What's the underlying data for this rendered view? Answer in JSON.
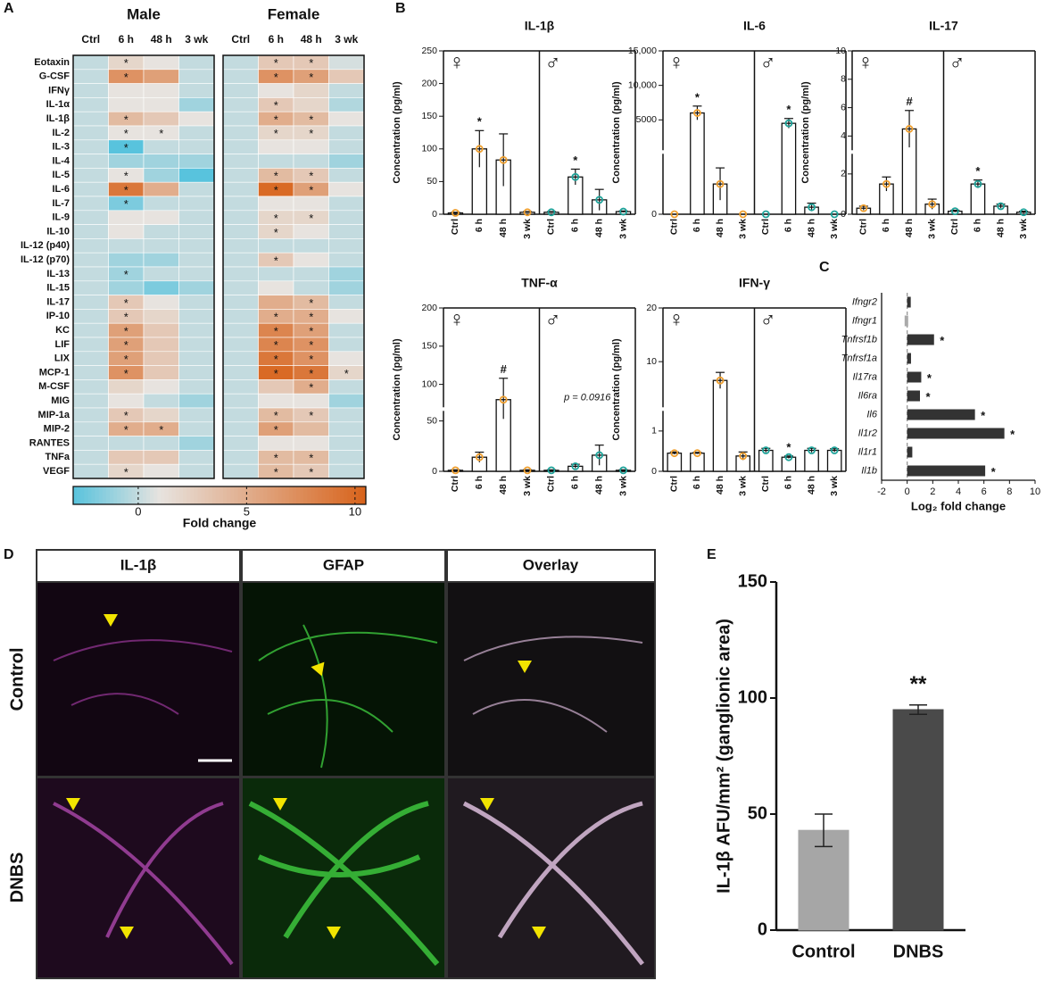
{
  "chart_data": [
    {
      "type": "heatmap",
      "panel": "A",
      "groups": [
        {
          "name": "Male",
          "columns": [
            "Ctrl",
            "6 h",
            "48 h",
            "3 wk"
          ]
        },
        {
          "name": "Female",
          "columns": [
            "Ctrl",
            "6 h",
            "48 h",
            "3 wk"
          ]
        }
      ],
      "rows": [
        "Eotaxin",
        "G-CSF",
        "IFNγ",
        "IL-1α",
        "IL-1β",
        "IL-2",
        "IL-3",
        "IL-4",
        "IL-5",
        "IL-6",
        "IL-7",
        "IL-9",
        "IL-10",
        "IL-12 (p40)",
        "IL-12 (p70)",
        "IL-13",
        "IL-15",
        "IL-17",
        "IP-10",
        "KC",
        "LIF",
        "LIX",
        "MCP-1",
        "M-CSF",
        "MIG",
        "MIP-1a",
        "MIP-2",
        "RANTES",
        "TNFa",
        "VEGF"
      ],
      "values": [
        [
          0,
          2,
          1,
          0,
          0,
          3,
          3,
          0.5
        ],
        [
          0,
          7,
          6,
          0,
          0,
          7,
          6,
          3
        ],
        [
          0,
          1,
          1,
          0,
          0,
          1,
          2,
          0
        ],
        [
          0,
          1,
          1,
          -1,
          0,
          3,
          2,
          -0.5
        ],
        [
          0,
          4,
          3,
          1,
          0,
          5,
          4,
          1
        ],
        [
          0,
          1,
          1,
          0,
          0,
          2,
          2,
          0
        ],
        [
          0,
          -3,
          0,
          0,
          0,
          1,
          1,
          0
        ],
        [
          0,
          -1,
          -1,
          -1,
          0,
          0,
          0,
          -1
        ],
        [
          0,
          1,
          -1,
          -3,
          0,
          4,
          3,
          0
        ],
        [
          0,
          9,
          5,
          0,
          0,
          10,
          6,
          1
        ],
        [
          0,
          -2,
          0,
          0,
          0,
          1,
          1,
          0
        ],
        [
          0,
          1,
          1,
          0,
          0,
          2,
          2,
          0
        ],
        [
          0,
          1,
          0,
          0,
          0,
          2,
          1,
          0
        ],
        [
          0,
          0,
          0,
          0,
          0,
          0,
          0,
          0
        ],
        [
          0,
          -1,
          -1,
          0,
          0,
          3,
          1,
          0
        ],
        [
          0,
          -1,
          0,
          0,
          0,
          0,
          0,
          -1
        ],
        [
          0,
          -1,
          -2,
          -1,
          0,
          1,
          0,
          -1
        ],
        [
          0,
          3,
          1,
          0,
          0,
          5,
          4,
          0
        ],
        [
          0,
          3,
          2,
          0,
          0,
          5,
          5,
          1
        ],
        [
          0,
          6,
          3,
          0,
          0,
          8,
          6,
          0
        ],
        [
          0,
          6,
          3,
          0,
          0,
          8,
          7,
          0
        ],
        [
          0,
          6,
          3,
          0,
          0,
          9,
          7,
          1
        ],
        [
          0,
          7,
          3,
          0,
          0,
          10,
          9,
          2
        ],
        [
          0,
          2,
          1,
          0,
          0,
          3,
          5,
          0
        ],
        [
          0,
          1,
          0,
          -1,
          0,
          1,
          1,
          -1
        ],
        [
          0,
          3,
          2,
          0,
          0,
          4,
          3,
          0
        ],
        [
          0,
          5,
          5,
          0,
          0,
          6,
          4,
          0
        ],
        [
          0,
          0,
          0,
          -1,
          0,
          1,
          1,
          0
        ],
        [
          0,
          3,
          3,
          0,
          0,
          4,
          4,
          0
        ],
        [
          0,
          2,
          1,
          0,
          0,
          4,
          3,
          0
        ]
      ],
      "star": "*",
      "star_cells": [
        [
          0,
          1
        ],
        [
          0,
          5
        ],
        [
          0,
          6
        ],
        [
          1,
          1
        ],
        [
          1,
          5
        ],
        [
          1,
          6
        ],
        [
          3,
          5
        ],
        [
          4,
          1
        ],
        [
          4,
          5
        ],
        [
          4,
          6
        ],
        [
          5,
          1
        ],
        [
          5,
          2
        ],
        [
          5,
          5
        ],
        [
          5,
          6
        ],
        [
          6,
          1
        ],
        [
          8,
          1
        ],
        [
          8,
          5
        ],
        [
          8,
          6
        ],
        [
          9,
          1
        ],
        [
          9,
          5
        ],
        [
          9,
          6
        ],
        [
          10,
          1
        ],
        [
          11,
          5
        ],
        [
          11,
          6
        ],
        [
          12,
          5
        ],
        [
          14,
          5
        ],
        [
          15,
          1
        ],
        [
          17,
          1
        ],
        [
          17,
          6
        ],
        [
          18,
          1
        ],
        [
          18,
          5
        ],
        [
          18,
          6
        ],
        [
          19,
          1
        ],
        [
          19,
          5
        ],
        [
          19,
          6
        ],
        [
          20,
          1
        ],
        [
          20,
          5
        ],
        [
          20,
          6
        ],
        [
          21,
          1
        ],
        [
          21,
          5
        ],
        [
          21,
          6
        ],
        [
          22,
          1
        ],
        [
          22,
          5
        ],
        [
          22,
          6
        ],
        [
          22,
          7
        ],
        [
          23,
          6
        ],
        [
          25,
          1
        ],
        [
          25,
          5
        ],
        [
          25,
          6
        ],
        [
          26,
          1
        ],
        [
          26,
          2
        ],
        [
          26,
          5
        ],
        [
          28,
          5
        ],
        [
          28,
          6
        ],
        [
          29,
          1
        ],
        [
          29,
          5
        ],
        [
          29,
          6
        ]
      ],
      "zlim": [
        -3,
        10.5
      ],
      "zticks": [
        0,
        5,
        10
      ],
      "colorbar_label": "Fold change",
      "colorscale": [
        [
          -3,
          "#58c3dd"
        ],
        [
          1,
          "#e7e3df"
        ],
        [
          10.5,
          "#d8631b"
        ]
      ]
    },
    {
      "type": "bar",
      "panel": "B",
      "title": "IL-1β",
      "ylabel": "Concentration (pg/ml)",
      "ylim": [
        0,
        250
      ],
      "yticks": [
        0,
        50,
        100,
        150,
        200,
        250
      ],
      "groups": [
        {
          "name": "♀",
          "color": "#f0a030",
          "categories": [
            "Ctrl",
            "6 h",
            "48 h",
            "3 wk"
          ],
          "values": [
            2,
            100,
            83,
            3
          ],
          "errors": [
            1,
            28,
            40,
            1
          ],
          "sig": [
            null,
            "*",
            null,
            null
          ]
        },
        {
          "name": "♂",
          "color": "#1fa39a",
          "categories": [
            "Ctrl",
            "6 h",
            "48 h",
            "3 wk"
          ],
          "values": [
            3,
            57,
            22,
            4
          ],
          "errors": [
            1,
            12,
            16,
            1
          ],
          "sig": [
            null,
            "*",
            null,
            null
          ]
        }
      ]
    },
    {
      "type": "bar",
      "title": "IL-6",
      "ylabel": "Concentration (pg/ml)",
      "ylim": [
        0,
        15000
      ],
      "ybreak": [
        600,
        600
      ],
      "yticks": [
        0,
        5000,
        {
          "value": 10000,
          "label": "10,000"
        },
        {
          "value": 15000,
          "label": "15,000"
        }
      ],
      "groups": [
        {
          "name": "♀",
          "color": "#f0a030",
          "categories": [
            "Ctrl",
            "6 h",
            "48 h",
            "3 wk"
          ],
          "values": [
            0,
            6000,
            300,
            0
          ],
          "errors": [
            0,
            1000,
            160,
            0
          ],
          "sig": [
            null,
            "*",
            null,
            null
          ]
        },
        {
          "name": "♂",
          "color": "#1fa39a",
          "categories": [
            "Ctrl",
            "6 h",
            "48 h",
            "3 wk"
          ],
          "values": [
            0,
            4500,
            70,
            0
          ],
          "errors": [
            0,
            700,
            40,
            0
          ],
          "sig": [
            null,
            "*",
            null,
            null
          ]
        }
      ]
    },
    {
      "type": "bar",
      "title": "IL-17",
      "ylabel": "Concentration (pg/ml)",
      "ylim": [
        0,
        10
      ],
      "ybreak": [
        3,
        3
      ],
      "yticks": [
        0,
        2,
        4,
        6,
        8,
        10
      ],
      "groups": [
        {
          "name": "♀",
          "color": "#f0a030",
          "categories": [
            "Ctrl",
            "6 h",
            "48 h",
            "3 wk"
          ],
          "values": [
            0.3,
            1.5,
            4.5,
            0.5
          ],
          "errors": [
            0.1,
            0.35,
            1.3,
            0.25
          ],
          "sig": [
            null,
            null,
            "#",
            null
          ]
        },
        {
          "name": "♂",
          "color": "#1fa39a",
          "categories": [
            "Ctrl",
            "6 h",
            "48 h",
            "3 wk"
          ],
          "values": [
            0.15,
            1.5,
            0.4,
            0.1
          ],
          "errors": [
            0.05,
            0.2,
            0.1,
            0.05
          ],
          "sig": [
            null,
            "*",
            null,
            null
          ]
        }
      ]
    },
    {
      "type": "bar",
      "title": "TNF-α",
      "ylabel": "Concentration (pg/ml)",
      "ylim": [
        0,
        200
      ],
      "ybreak": [
        60,
        70
      ],
      "yticks": [
        0,
        50,
        100,
        150,
        200
      ],
      "annotation": "p = 0.0916",
      "groups": [
        {
          "name": "♀",
          "color": "#f0a030",
          "categories": [
            "Ctrl",
            "6 h",
            "48 h",
            "3 wk"
          ],
          "values": [
            1,
            14,
            80,
            1
          ],
          "errors": [
            0.5,
            5,
            28,
            0.5
          ],
          "sig": [
            null,
            null,
            "#",
            null
          ]
        },
        {
          "name": "♂",
          "color": "#1fa39a",
          "categories": [
            "Ctrl",
            "6 h",
            "48 h",
            "3 wk"
          ],
          "values": [
            1,
            5,
            16,
            1
          ],
          "errors": [
            0.5,
            2,
            10,
            0.5
          ],
          "sig": [
            null,
            null,
            null,
            null
          ]
        }
      ]
    },
    {
      "type": "bar",
      "title": "IFN-γ",
      "ylabel": "Concentration (pg/ml)",
      "ylim": [
        0,
        20
      ],
      "ybreak": [
        1.5,
        1.5
      ],
      "yticks": [
        0,
        1,
        10,
        20
      ],
      "groups": [
        {
          "name": "♀",
          "color": "#f0a030",
          "categories": [
            "Ctrl",
            "6 h",
            "48 h",
            "3 wk"
          ],
          "values": [
            0.45,
            0.45,
            6.5,
            0.38
          ],
          "errors": [
            0.03,
            0.02,
            1.5,
            0.1
          ],
          "sig": [
            null,
            null,
            null,
            null
          ]
        },
        {
          "name": "♂",
          "color": "#1fa39a",
          "categories": [
            "Ctrl",
            "6 h",
            "48 h",
            "3 wk"
          ],
          "values": [
            0.52,
            0.35,
            0.52,
            0.52
          ],
          "errors": [
            0.05,
            0.03,
            0.05,
            0.04
          ],
          "sig": [
            null,
            "*",
            null,
            null
          ]
        }
      ]
    },
    {
      "type": "hbar",
      "panel": "C",
      "xlabel": "Log₂ fold change",
      "xlim": [
        -2,
        10
      ],
      "xticks": [
        -2,
        0,
        2,
        4,
        6,
        8,
        10
      ],
      "categories": [
        "Ifngr2",
        "Ifngr1",
        "Tnfrsf1b",
        "Tnfrsf1a",
        "Il17ra",
        "Il6ra",
        "Il6",
        "Il1r2",
        "Il1r1",
        "Il1b"
      ],
      "values": [
        0.1,
        -0.2,
        2.1,
        0.3,
        1.1,
        1.0,
        5.3,
        7.6,
        0.4,
        6.1
      ],
      "colors": [
        "#333333",
        "#aaaaaa",
        "#333333",
        "#333333",
        "#333333",
        "#333333",
        "#333333",
        "#333333",
        "#333333",
        "#333333"
      ],
      "sig": [
        null,
        null,
        "*",
        null,
        "*",
        "*",
        "*",
        "*",
        null,
        "*"
      ]
    },
    {
      "type": "bar_simple",
      "panel": "E",
      "ylabel": "IL-1β AFU/mm² (ganglionic area)",
      "ylim": [
        0,
        150
      ],
      "yticks": [
        0,
        50,
        100,
        150
      ],
      "categories": [
        "Control",
        "DNBS"
      ],
      "values": [
        43,
        95
      ],
      "errors": [
        7,
        2
      ],
      "colors": [
        "#a6a6a6",
        "#4a4a4a"
      ],
      "sig": [
        null,
        "**"
      ]
    }
  ],
  "figure_panel_d": {
    "panel": "D",
    "columns": [
      "IL-1β",
      "GFAP",
      "Overlay"
    ],
    "rows": [
      "Control",
      "DNBS"
    ]
  }
}
